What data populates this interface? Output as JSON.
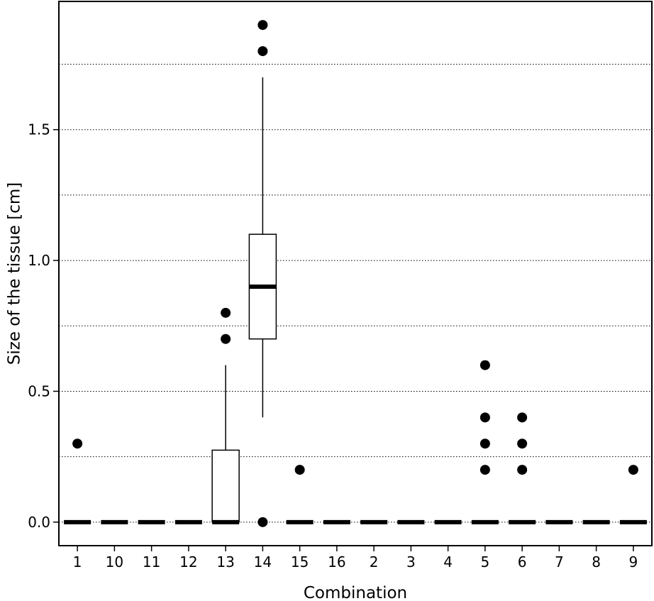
{
  "chart_data": {
    "type": "box",
    "title": "",
    "xlabel": "Combination",
    "ylabel": "Size of the tissue [cm]",
    "ylim": [
      -0.09,
      1.99
    ],
    "yticks": [
      0.0,
      0.5,
      1.0,
      1.5
    ],
    "ytick_labels": [
      "0.0",
      "0.5",
      "1.0",
      "1.5"
    ],
    "grid": {
      "y_major": [
        0.25,
        0.5,
        0.75,
        1.0,
        1.25,
        1.5,
        1.75
      ],
      "style": "dotted"
    },
    "categories": [
      "1",
      "10",
      "11",
      "12",
      "13",
      "14",
      "15",
      "16",
      "2",
      "3",
      "4",
      "5",
      "6",
      "7",
      "8",
      "9"
    ],
    "boxes": [
      {
        "category": "1",
        "q1": 0.0,
        "median": 0.0,
        "q3": 0.0,
        "whisker_low": 0.0,
        "whisker_high": 0.0,
        "outliers": [
          0.3
        ]
      },
      {
        "category": "10",
        "q1": 0.0,
        "median": 0.0,
        "q3": 0.0,
        "whisker_low": 0.0,
        "whisker_high": 0.0,
        "outliers": []
      },
      {
        "category": "11",
        "q1": 0.0,
        "median": 0.0,
        "q3": 0.0,
        "whisker_low": 0.0,
        "whisker_high": 0.0,
        "outliers": []
      },
      {
        "category": "12",
        "q1": 0.0,
        "median": 0.0,
        "q3": 0.0,
        "whisker_low": 0.0,
        "whisker_high": 0.0,
        "outliers": []
      },
      {
        "category": "13",
        "q1": 0.0,
        "median": 0.0,
        "q3": 0.275,
        "whisker_low": 0.0,
        "whisker_high": 0.6,
        "outliers": [
          0.7,
          0.8
        ]
      },
      {
        "category": "14",
        "q1": 0.7,
        "median": 0.9,
        "q3": 1.1,
        "whisker_low": 0.4,
        "whisker_high": 1.7,
        "outliers": [
          0.0,
          1.8,
          1.9
        ]
      },
      {
        "category": "15",
        "q1": 0.0,
        "median": 0.0,
        "q3": 0.0,
        "whisker_low": 0.0,
        "whisker_high": 0.0,
        "outliers": [
          0.2
        ]
      },
      {
        "category": "16",
        "q1": 0.0,
        "median": 0.0,
        "q3": 0.0,
        "whisker_low": 0.0,
        "whisker_high": 0.0,
        "outliers": []
      },
      {
        "category": "2",
        "q1": 0.0,
        "median": 0.0,
        "q3": 0.0,
        "whisker_low": 0.0,
        "whisker_high": 0.0,
        "outliers": []
      },
      {
        "category": "3",
        "q1": 0.0,
        "median": 0.0,
        "q3": 0.0,
        "whisker_low": 0.0,
        "whisker_high": 0.0,
        "outliers": []
      },
      {
        "category": "4",
        "q1": 0.0,
        "median": 0.0,
        "q3": 0.0,
        "whisker_low": 0.0,
        "whisker_high": 0.0,
        "outliers": []
      },
      {
        "category": "5",
        "q1": 0.0,
        "median": 0.0,
        "q3": 0.0,
        "whisker_low": 0.0,
        "whisker_high": 0.0,
        "outliers": [
          0.2,
          0.3,
          0.4,
          0.6
        ]
      },
      {
        "category": "6",
        "q1": 0.0,
        "median": 0.0,
        "q3": 0.0,
        "whisker_low": 0.0,
        "whisker_high": 0.0,
        "outliers": [
          0.2,
          0.3,
          0.4
        ]
      },
      {
        "category": "7",
        "q1": 0.0,
        "median": 0.0,
        "q3": 0.0,
        "whisker_low": 0.0,
        "whisker_high": 0.0,
        "outliers": []
      },
      {
        "category": "8",
        "q1": 0.0,
        "median": 0.0,
        "q3": 0.0,
        "whisker_low": 0.0,
        "whisker_high": 0.0,
        "outliers": []
      },
      {
        "category": "9",
        "q1": 0.0,
        "median": 0.0,
        "q3": 0.0,
        "whisker_low": 0.0,
        "whisker_high": 0.0,
        "outliers": [
          0.2
        ]
      }
    ],
    "colors": {
      "box_fill": "#ffffff",
      "stroke": "#000000",
      "grid": "#000000",
      "outlier": "#000000"
    }
  }
}
